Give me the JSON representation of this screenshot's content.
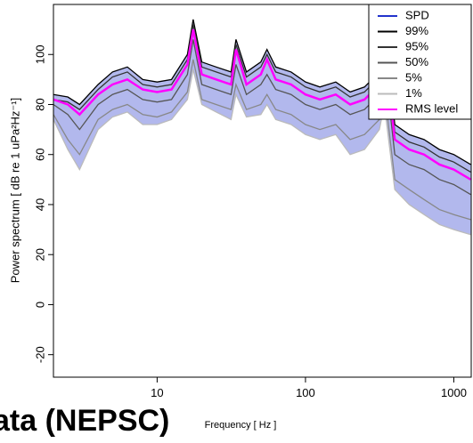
{
  "chart_data": {
    "type": "line",
    "xlog": true,
    "xlabel": "Frequency [ Hz ]",
    "ylabel": "Power spectrum [ dB re 1 uPa²Hz⁻¹]",
    "caption": "ata (NEPSC)",
    "xlim": [
      2,
      1310
    ],
    "xticks": [
      10,
      100,
      1000
    ],
    "ylim": [
      -29,
      120
    ],
    "yticks": [
      -20,
      0,
      20,
      40,
      60,
      80,
      100
    ],
    "spd": {
      "name": "SPD",
      "color": "#2233cc"
    },
    "x": [
      2,
      2.5,
      3,
      4,
      5,
      6.3,
      8,
      10,
      12.5,
      16,
      17.5,
      20,
      25,
      31.5,
      34,
      40,
      50,
      55,
      63,
      80,
      100,
      125,
      160,
      200,
      250,
      315,
      340,
      400,
      500,
      630,
      800,
      1000,
      1300
    ],
    "series": [
      {
        "name": "99%",
        "color": "#000000",
        "values": [
          84,
          83,
          80,
          88,
          93,
          95,
          90,
          89,
          90,
          100,
          114,
          97,
          95,
          93,
          106,
          93,
          97,
          102,
          95,
          93,
          89,
          87,
          89,
          85,
          87,
          93,
          112,
          72,
          68,
          66,
          62,
          60,
          56
        ]
      },
      {
        "name": "95%",
        "color": "#333333",
        "values": [
          82,
          81,
          78,
          86,
          91,
          93,
          88,
          87,
          88,
          98,
          112,
          95,
          93,
          91,
          104,
          91,
          95,
          100,
          93,
          91,
          87,
          85,
          87,
          83,
          85,
          91,
          108,
          69,
          65,
          63,
          59,
          57,
          53
        ]
      },
      {
        "name": "50%",
        "color": "#555555",
        "values": [
          80,
          76,
          70,
          80,
          84,
          86,
          82,
          81,
          82,
          92,
          106,
          88,
          86,
          84,
          96,
          84,
          88,
          92,
          86,
          84,
          80,
          78,
          80,
          76,
          78,
          84,
          98,
          60,
          56,
          54,
          50,
          48,
          44
        ]
      },
      {
        "name": "5%",
        "color": "#888888",
        "values": [
          76,
          66,
          60,
          74,
          78,
          80,
          76,
          75,
          77,
          85,
          98,
          82,
          80,
          78,
          88,
          78,
          80,
          84,
          78,
          76,
          72,
          70,
          72,
          66,
          68,
          74,
          86,
          50,
          46,
          42,
          38,
          36,
          34
        ]
      },
      {
        "name": "1%",
        "color": "#bbbbbb",
        "values": [
          74,
          62,
          54,
          70,
          75,
          77,
          72,
          72,
          74,
          82,
          94,
          80,
          77,
          74,
          84,
          75,
          76,
          80,
          74,
          72,
          68,
          66,
          68,
          60,
          62,
          70,
          80,
          46,
          40,
          36,
          32,
          30,
          28
        ]
      },
      {
        "name": "RMS level",
        "color": "#ff00ff",
        "values": [
          82,
          80,
          76,
          84,
          88,
          90,
          86,
          85,
          86,
          96,
          110,
          92,
          90,
          88,
          102,
          88,
          92,
          98,
          90,
          88,
          84,
          82,
          84,
          80,
          82,
          88,
          104,
          66,
          62,
          60,
          56,
          54,
          50
        ]
      }
    ]
  }
}
